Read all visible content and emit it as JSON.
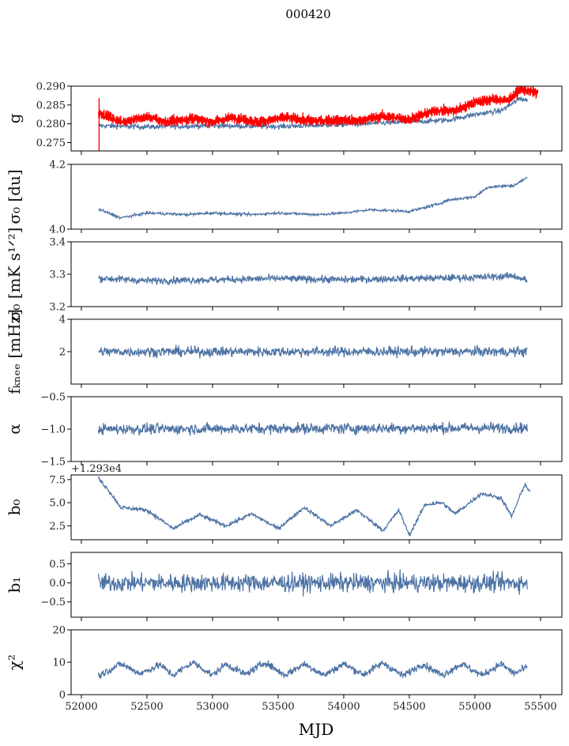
{
  "chart_data": {
    "type": "line",
    "title": "000420",
    "xlabel": "MJD",
    "xlim": [
      51922,
      55663
    ],
    "xticks": [
      52000,
      52500,
      53000,
      53500,
      54000,
      54500,
      55000,
      55500
    ],
    "series_color": "#4c72a4",
    "panels": [
      {
        "ylabel": "g",
        "ylim": [
          0.2728,
          0.29
        ],
        "yticks": [
          "0.275",
          "0.280",
          "0.285",
          "0.290"
        ],
        "ytick_values": [
          0.275,
          0.28,
          0.285,
          0.29
        ],
        "series": [
          {
            "name": "g",
            "color": "#4c72a4",
            "noise": 0.0005,
            "points": [
              [
                52130,
                0.2795
              ],
              [
                52500,
                0.2792
              ],
              [
                53000,
                0.2795
              ],
              [
                53500,
                0.2793
              ],
              [
                54000,
                0.2798
              ],
              [
                54500,
                0.2805
              ],
              [
                54800,
                0.281
              ],
              [
                55000,
                0.2825
              ],
              [
                55200,
                0.2835
              ],
              [
                55350,
                0.2868
              ],
              [
                55400,
                0.2862
              ]
            ]
          },
          {
            "name": "g model",
            "color": "#ff0000",
            "noise": 0.0007,
            "dense": true,
            "points": [
              [
                52130,
                0.283
              ],
              [
                52300,
                0.2805
              ],
              [
                52500,
                0.2818
              ],
              [
                52650,
                0.2805
              ],
              [
                52850,
                0.2815
              ],
              [
                53000,
                0.2805
              ],
              [
                53150,
                0.2817
              ],
              [
                53350,
                0.2805
              ],
              [
                53550,
                0.2817
              ],
              [
                53750,
                0.2808
              ],
              [
                53950,
                0.281
              ],
              [
                54100,
                0.2808
              ],
              [
                54300,
                0.282
              ],
              [
                54500,
                0.2812
              ],
              [
                54700,
                0.2835
              ],
              [
                54850,
                0.2835
              ],
              [
                55000,
                0.2858
              ],
              [
                55150,
                0.2865
              ],
              [
                55250,
                0.2862
              ],
              [
                55350,
                0.2892
              ],
              [
                55480,
                0.2882
              ]
            ]
          }
        ]
      },
      {
        "ylabel": "σ₀ [du]",
        "ylim": [
          4.0,
          4.2
        ],
        "yticks": [
          "4.0",
          "4.2"
        ],
        "ytick_values": [
          4.0,
          4.2
        ],
        "series": [
          {
            "name": "sigma0_du",
            "color": "#4c72a4",
            "noise": 0.003,
            "points": [
              [
                52130,
                4.062
              ],
              [
                52300,
                4.035
              ],
              [
                52500,
                4.05
              ],
              [
                52800,
                4.045
              ],
              [
                53000,
                4.05
              ],
              [
                53300,
                4.045
              ],
              [
                53500,
                4.05
              ],
              [
                53800,
                4.045
              ],
              [
                54000,
                4.05
              ],
              [
                54200,
                4.06
              ],
              [
                54500,
                4.055
              ],
              [
                54700,
                4.075
              ],
              [
                54800,
                4.09
              ],
              [
                55000,
                4.1
              ],
              [
                55100,
                4.13
              ],
              [
                55300,
                4.135
              ],
              [
                55400,
                4.16
              ]
            ]
          }
        ]
      },
      {
        "ylabel": "σ₀ [mK s¹ᐟ²]",
        "ylim": [
          3.2,
          3.4
        ],
        "yticks": [
          "3.2",
          "3.3",
          "3.4"
        ],
        "ytick_values": [
          3.2,
          3.3,
          3.4
        ],
        "series": [
          {
            "name": "sigma0_mK",
            "color": "#4c72a4",
            "noise": 0.008,
            "points": [
              [
                52130,
                3.288
              ],
              [
                52500,
                3.28
              ],
              [
                53000,
                3.283
              ],
              [
                53500,
                3.287
              ],
              [
                54000,
                3.283
              ],
              [
                54500,
                3.287
              ],
              [
                55000,
                3.29
              ],
              [
                55300,
                3.295
              ],
              [
                55400,
                3.28
              ]
            ]
          }
        ]
      },
      {
        "ylabel": "fₖₙₑₑ [mHz]",
        "ylim": [
          0,
          4
        ],
        "yticks": [
          "2",
          "4"
        ],
        "ytick_values": [
          2,
          4
        ],
        "series": [
          {
            "name": "fknee",
            "color": "#4c72a4",
            "noise": 0.22,
            "points": [
              [
                52130,
                2.0
              ],
              [
                55400,
                2.0
              ]
            ]
          }
        ]
      },
      {
        "ylabel": "α",
        "ylim": [
          -1.5,
          -0.5
        ],
        "yticks": [
          "−1.5",
          "−1.0",
          "−0.5"
        ],
        "ytick_values": [
          -1.5,
          -1.0,
          -0.5
        ],
        "series": [
          {
            "name": "alpha",
            "color": "#4c72a4",
            "noise": 0.06,
            "points": [
              [
                52130,
                -1.0
              ],
              [
                55400,
                -0.98
              ]
            ]
          }
        ]
      },
      {
        "ylabel": "b₀",
        "offset_text": "+1.293e4",
        "ylim": [
          1.0,
          8.0
        ],
        "yticks": [
          "2.5",
          "5.0",
          "7.5"
        ],
        "ytick_values": [
          2.5,
          5.0,
          7.5
        ],
        "series": [
          {
            "name": "b0",
            "color": "#4c72a4",
            "noise": 0.15,
            "points": [
              [
                52130,
                7.6
              ],
              [
                52200,
                6.5
              ],
              [
                52300,
                4.5
              ],
              [
                52500,
                4.2
              ],
              [
                52700,
                2.2
              ],
              [
                52900,
                3.7
              ],
              [
                53100,
                2.5
              ],
              [
                53300,
                3.8
              ],
              [
                53500,
                2.2
              ],
              [
                53700,
                4.5
              ],
              [
                53900,
                2.5
              ],
              [
                54100,
                4.2
              ],
              [
                54300,
                2.0
              ],
              [
                54420,
                4.2
              ],
              [
                54500,
                1.5
              ],
              [
                54620,
                4.8
              ],
              [
                54750,
                5.0
              ],
              [
                54850,
                3.8
              ],
              [
                55050,
                6.0
              ],
              [
                55200,
                5.5
              ],
              [
                55280,
                3.5
              ],
              [
                55380,
                7.0
              ],
              [
                55420,
                6.2
              ]
            ]
          }
        ]
      },
      {
        "ylabel": "b₁",
        "ylim": [
          -0.9,
          0.8
        ],
        "yticks": [
          "−0.5",
          "0.0",
          "0.5"
        ],
        "ytick_values": [
          -0.5,
          0.0,
          0.5
        ],
        "series": [
          {
            "name": "b1",
            "color": "#4c72a4",
            "noise": 0.17,
            "points": [
              [
                52130,
                0.0
              ],
              [
                55400,
                0.0
              ]
            ]
          }
        ]
      },
      {
        "ylabel": "χ²",
        "ylim": [
          0,
          20
        ],
        "yticks": [
          "0",
          "10",
          "20"
        ],
        "ytick_values": [
          0,
          10,
          20
        ],
        "series": [
          {
            "name": "chi2",
            "color": "#4c72a4",
            "noise": 0.8,
            "points": [
              [
                52130,
                5.8
              ],
              [
                52300,
                9.5
              ],
              [
                52450,
                6.5
              ],
              [
                52600,
                9.2
              ],
              [
                52700,
                6.0
              ],
              [
                52850,
                10.0
              ],
              [
                53000,
                6.0
              ],
              [
                53100,
                9.5
              ],
              [
                53250,
                6.2
              ],
              [
                53400,
                10.0
              ],
              [
                53550,
                6.0
              ],
              [
                53700,
                9.5
              ],
              [
                53850,
                6.0
              ],
              [
                54000,
                9.5
              ],
              [
                54150,
                6.2
              ],
              [
                54300,
                9.8
              ],
              [
                54450,
                5.8
              ],
              [
                54600,
                9.5
              ],
              [
                54750,
                6.0
              ],
              [
                54900,
                9.5
              ],
              [
                55050,
                6.0
              ],
              [
                55200,
                9.5
              ],
              [
                55300,
                6.5
              ],
              [
                55400,
                8.5
              ]
            ]
          }
        ]
      }
    ]
  }
}
